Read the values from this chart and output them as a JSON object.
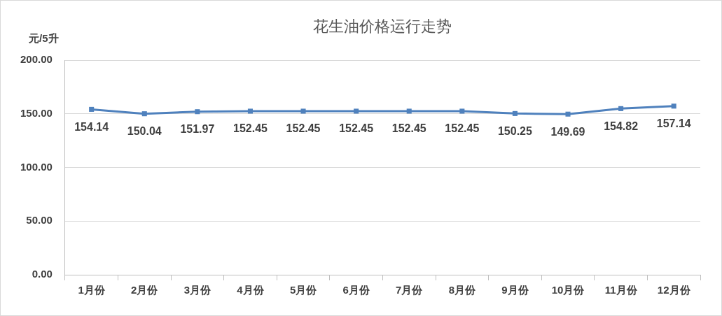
{
  "chart_data": {
    "type": "line",
    "title": "花生油价格运行走势",
    "ylabel": "元/5升",
    "categories": [
      "1月份",
      "2月份",
      "3月份",
      "4月份",
      "5月份",
      "6月份",
      "7月份",
      "8月份",
      "9月份",
      "10月份",
      "11月份",
      "12月份"
    ],
    "series": [
      {
        "color": "#4f81bd",
        "values": [
          154.14,
          150.04,
          151.97,
          152.45,
          152.45,
          152.45,
          152.45,
          152.45,
          150.25,
          149.69,
          154.82,
          157.14
        ]
      }
    ],
    "ylim": [
      0,
      200
    ],
    "yticks": [
      {
        "value": 0,
        "label": "0.00"
      },
      {
        "value": 50,
        "label": "50.00"
      },
      {
        "value": 100,
        "label": "100.00"
      },
      {
        "value": 150,
        "label": "150.00"
      },
      {
        "value": 200,
        "label": "200.00"
      }
    ],
    "grid": "y",
    "legend": false,
    "marker": "square",
    "line_style": "solid",
    "data_labels": true
  }
}
